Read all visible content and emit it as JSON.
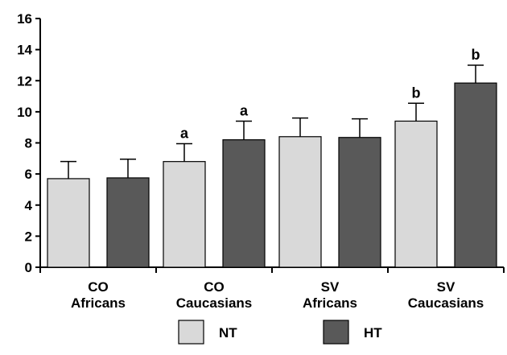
{
  "chart_data": {
    "type": "bar",
    "categories": [
      [
        "CO",
        "Africans"
      ],
      [
        "CO",
        "Caucasians"
      ],
      [
        "SV",
        "Africans"
      ],
      [
        "SV",
        "Caucasians"
      ]
    ],
    "series": [
      {
        "name": "NT",
        "color": "#d9d9d9",
        "values": [
          5.7,
          6.8,
          8.4,
          9.4
        ],
        "errors": [
          1.1,
          1.15,
          1.2,
          1.15
        ],
        "annotations": [
          "",
          "a",
          "",
          "b"
        ]
      },
      {
        "name": "HT",
        "color": "#595959",
        "values": [
          5.75,
          8.2,
          8.35,
          11.85
        ],
        "errors": [
          1.2,
          1.2,
          1.2,
          1.15
        ],
        "annotations": [
          "",
          "a",
          "",
          "b"
        ]
      }
    ],
    "yticks": [
      0,
      2,
      4,
      6,
      8,
      10,
      12,
      14,
      16
    ],
    "ylim": [
      0,
      16
    ],
    "title": "",
    "xlabel": "",
    "ylabel": "",
    "legend": {
      "placement": "bottom"
    }
  }
}
